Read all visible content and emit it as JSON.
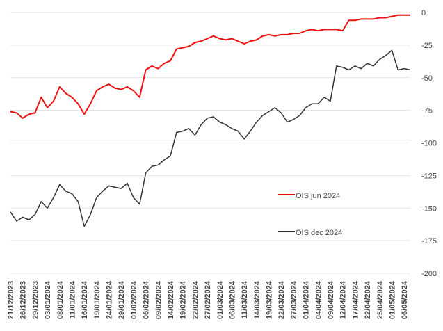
{
  "chart_data": {
    "type": "line",
    "categories": [
      "21/12/2023",
      null,
      "26/12/2023",
      null,
      "29/12/2023",
      null,
      "03/01/2024",
      null,
      "08/01/2024",
      null,
      "11/01/2024",
      null,
      "16/01/2024",
      null,
      "19/01/2024",
      null,
      "24/01/2024",
      null,
      "29/01/2024",
      null,
      "01/02/2024",
      null,
      "06/02/2024",
      null,
      "09/02/2024",
      null,
      "14/02/2024",
      null,
      "19/02/2024",
      null,
      "22/02/2024",
      null,
      "27/02/2024",
      null,
      "01/03/2024",
      null,
      "06/03/2024",
      null,
      "11/03/2024",
      null,
      "14/03/2024",
      null,
      "19/03/2024",
      null,
      "22/03/2024",
      null,
      "27/03/2024",
      null,
      "01/04/2024",
      null,
      "04/04/2024",
      null,
      "09/04/2024",
      null,
      "12/04/2024",
      null,
      "17/04/2024",
      null,
      "22/04/2024",
      null,
      "25/04/2024",
      null,
      "01/05/2024",
      null,
      "06/05/2024",
      null
    ],
    "series": [
      {
        "name": "OIS jun 2024",
        "color": "#ee1111",
        "values": [
          -76,
          -77,
          -81,
          -78,
          -77,
          -65,
          -73,
          -68,
          -57,
          -62,
          -65,
          -70,
          -78,
          -70,
          -60,
          -57,
          -55,
          -58,
          -59,
          -57,
          -60,
          -65,
          -44,
          -41,
          -43,
          -39,
          -37,
          -28,
          -27,
          -26,
          -23,
          -22,
          -20,
          -18,
          -20,
          -21,
          -20,
          -22,
          -24,
          -22,
          -21,
          -18,
          -17,
          -18,
          -17,
          -17,
          -16,
          -16,
          -14,
          -13,
          -14,
          -13,
          -13,
          -13,
          -14,
          -6,
          -6,
          -5,
          -5,
          -5,
          -4,
          -4,
          -3,
          -2,
          -2,
          -2
        ]
      },
      {
        "name": "OIS dec 2024",
        "color": "#333333",
        "values": [
          -153,
          -160,
          -157,
          -159,
          -155,
          -145,
          -150,
          -142,
          -132,
          -137,
          -139,
          -145,
          -164,
          -155,
          -142,
          -137,
          -133,
          -134,
          -135,
          -131,
          -142,
          -147,
          -123,
          -118,
          -117,
          -113,
          -110,
          -92,
          -91,
          -89,
          -94,
          -86,
          -81,
          -80,
          -84,
          -86,
          -89,
          -91,
          -97,
          -91,
          -84,
          -79,
          -76,
          -73,
          -77,
          -84,
          -82,
          -79,
          -73,
          -70,
          -70,
          -65,
          -68,
          -41,
          -42,
          -44,
          -41,
          -43,
          -39,
          -41,
          -36,
          -33,
          -29,
          -44,
          -43,
          -44
        ]
      }
    ],
    "ylim": [
      -200,
      0
    ],
    "yticks": [
      0,
      -25,
      -50,
      -75,
      -100,
      -125,
      -150,
      -175,
      -200
    ],
    "grid": true,
    "legend": "right"
  }
}
